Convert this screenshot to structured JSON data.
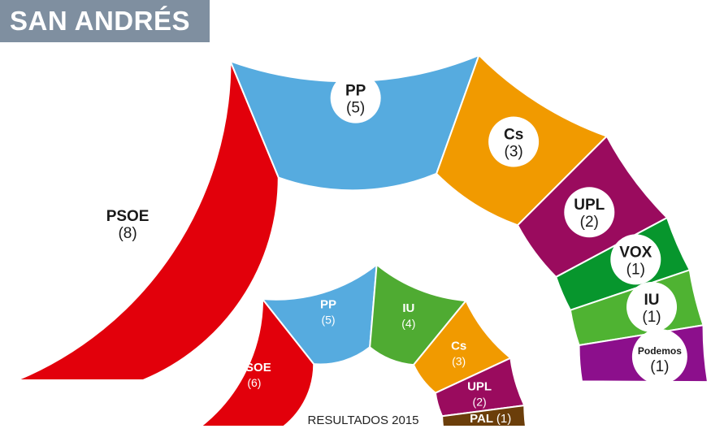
{
  "header": {
    "title": "SAN ANDRÉS"
  },
  "chart_data": [
    {
      "type": "pie",
      "subtype": "semicircle-parliament",
      "title": "",
      "categories": [
        "PSOE",
        "PP",
        "Cs",
        "UPL",
        "VOX",
        "IU",
        "Podemos"
      ],
      "values": [
        8,
        5,
        3,
        2,
        1,
        1,
        1
      ],
      "labels": [
        "(8)",
        "(5)",
        "(3)",
        "(2)",
        "(1)",
        "(1)",
        "(1)"
      ],
      "colors": [
        "#e2000b",
        "#56abdf",
        "#f19a00",
        "#9a0b5e",
        "#07962d",
        "#4fb332",
        "#8c0f8c"
      ]
    },
    {
      "type": "pie",
      "subtype": "semicircle-parliament",
      "title": "RESULTADOS 2015",
      "categories": [
        "PSOE",
        "PP",
        "IU",
        "Cs",
        "UPL",
        "PAL"
      ],
      "values": [
        6,
        5,
        4,
        3,
        2,
        1
      ],
      "labels": [
        "(6)",
        "(5)",
        "(4)",
        "(3)",
        "(2)",
        "(1)"
      ],
      "colors": [
        "#e2000b",
        "#56abdf",
        "#4fab32",
        "#f19a00",
        "#9a0b5e",
        "#6b3e0a"
      ]
    }
  ]
}
